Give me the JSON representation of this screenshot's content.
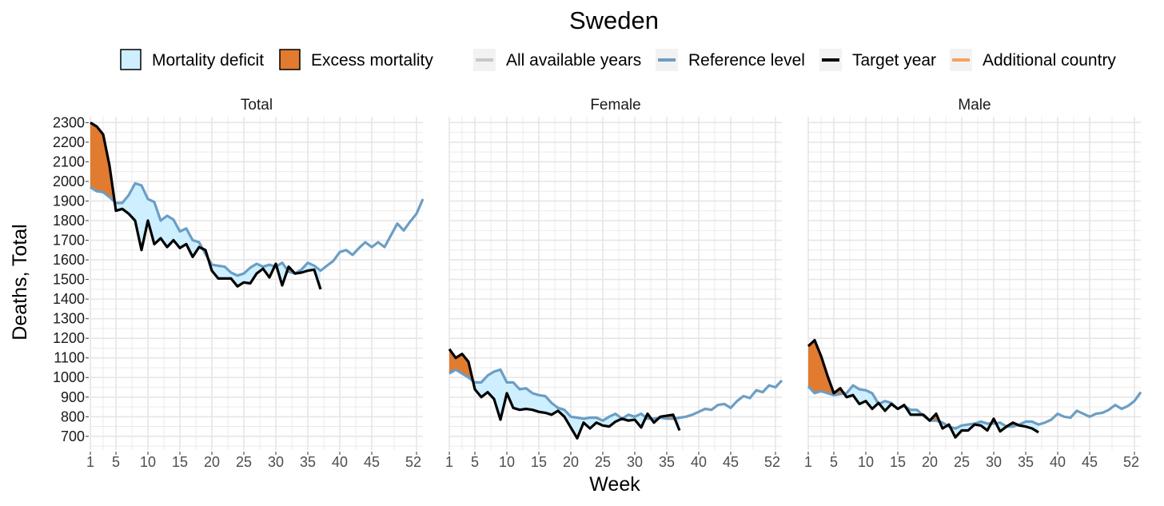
{
  "chart_data": {
    "type": "line",
    "title": "Sweden",
    "xlabel": "Week",
    "ylabel": "Deaths, Total",
    "ylim": [
      630,
      2330
    ],
    "xlim": [
      1,
      53
    ],
    "x_ticks": [
      1,
      5,
      10,
      15,
      20,
      25,
      30,
      35,
      40,
      45,
      52
    ],
    "y_ticks": [
      700,
      800,
      900,
      1000,
      1100,
      1200,
      1300,
      1400,
      1500,
      1600,
      1700,
      1800,
      1900,
      2000,
      2100,
      2200,
      2300
    ],
    "grid": true,
    "legend_position": "top",
    "legend": {
      "fill": [
        {
          "label": "Mortality deficit",
          "color": "#cdefff"
        },
        {
          "label": "Excess mortality",
          "color": "#e07b30"
        }
      ],
      "lines": [
        {
          "label": "All available years",
          "color": "#c8c8c8"
        },
        {
          "label": "Reference level",
          "color": "#6c9ec4"
        },
        {
          "label": "Target year",
          "color": "#000000"
        },
        {
          "label": "Additional country",
          "color": "#f4a261"
        }
      ]
    },
    "colors": {
      "excess": "#e07b30",
      "deficit": "#cdefff",
      "reference": "#6c9ec4",
      "target": "#000000",
      "grid": "#e6e6e6"
    },
    "panels": [
      {
        "name": "Total",
        "reference": [
          1970,
          1950,
          1945,
          1920,
          1890,
          1890,
          1930,
          1990,
          1980,
          1910,
          1895,
          1800,
          1825,
          1805,
          1745,
          1760,
          1700,
          1690,
          1630,
          1575,
          1570,
          1565,
          1535,
          1520,
          1530,
          1560,
          1580,
          1565,
          1575,
          1565,
          1585,
          1540,
          1530,
          1550,
          1585,
          1570,
          1545,
          1570,
          1595,
          1640,
          1650,
          1625,
          1660,
          1690,
          1665,
          1690,
          1665,
          1725,
          1785,
          1750,
          1795,
          1835,
          1910
        ],
        "target": [
          2300,
          2280,
          2240,
          2080,
          1850,
          1860,
          1835,
          1800,
          1650,
          1800,
          1680,
          1710,
          1665,
          1700,
          1660,
          1680,
          1615,
          1665,
          1650,
          1545,
          1505,
          1505,
          1505,
          1465,
          1485,
          1480,
          1530,
          1555,
          1510,
          1580,
          1470,
          1565,
          1530,
          1535,
          1545,
          1550,
          1450
        ]
      },
      {
        "name": "Female",
        "reference": [
          1020,
          1040,
          1020,
          1000,
          975,
          975,
          1010,
          1030,
          1040,
          975,
          975,
          940,
          945,
          920,
          910,
          905,
          870,
          845,
          835,
          800,
          795,
          790,
          795,
          795,
          780,
          800,
          815,
          790,
          810,
          800,
          815,
          790,
          790,
          795,
          790,
          790,
          795,
          800,
          810,
          825,
          840,
          835,
          860,
          865,
          845,
          880,
          905,
          895,
          935,
          925,
          960,
          950,
          985
        ],
        "target": [
          1145,
          1100,
          1120,
          1080,
          940,
          900,
          925,
          890,
          785,
          920,
          845,
          835,
          840,
          835,
          825,
          820,
          810,
          830,
          800,
          745,
          690,
          770,
          740,
          770,
          755,
          750,
          775,
          790,
          780,
          785,
          745,
          815,
          770,
          800,
          805,
          810,
          730
        ]
      },
      {
        "name": "Male",
        "reference": [
          955,
          920,
          930,
          920,
          910,
          915,
          920,
          960,
          940,
          935,
          920,
          865,
          880,
          870,
          840,
          855,
          835,
          835,
          805,
          780,
          780,
          770,
          750,
          740,
          755,
          760,
          765,
          775,
          765,
          765,
          770,
          750,
          750,
          760,
          775,
          775,
          760,
          770,
          785,
          815,
          800,
          795,
          830,
          815,
          800,
          815,
          820,
          835,
          860,
          840,
          855,
          880,
          925
        ],
        "target": [
          1160,
          1190,
          1110,
          1010,
          920,
          945,
          900,
          910,
          865,
          880,
          840,
          870,
          830,
          865,
          840,
          860,
          810,
          810,
          810,
          780,
          815,
          740,
          760,
          695,
          730,
          730,
          760,
          755,
          730,
          790,
          725,
          750,
          770,
          755,
          750,
          740,
          720
        ]
      }
    ]
  }
}
